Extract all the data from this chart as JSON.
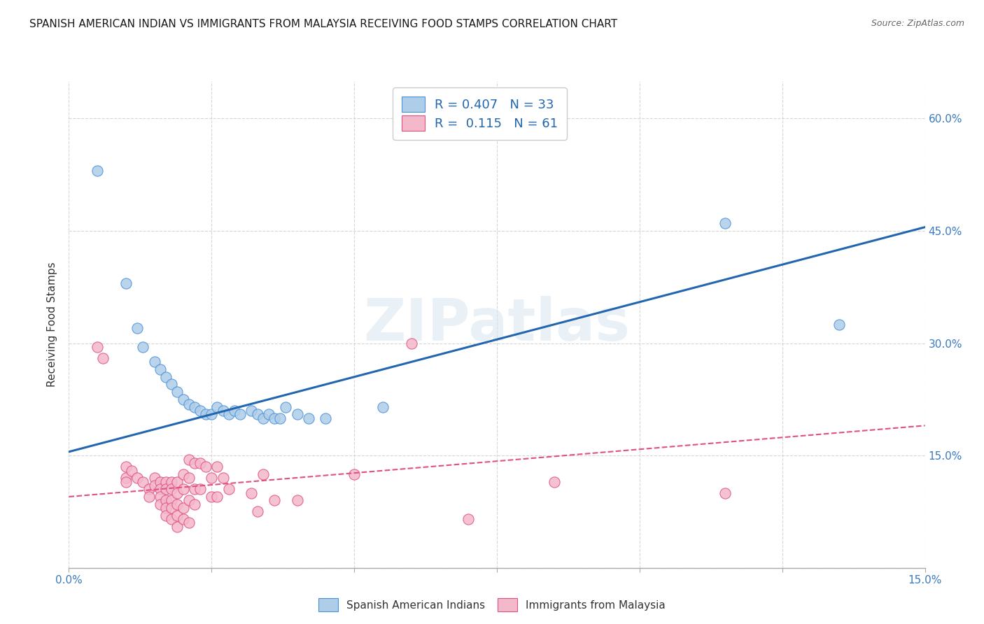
{
  "title": "SPANISH AMERICAN INDIAN VS IMMIGRANTS FROM MALAYSIA RECEIVING FOOD STAMPS CORRELATION CHART",
  "source": "Source: ZipAtlas.com",
  "ylabel": "Receiving Food Stamps",
  "xlim": [
    0.0,
    0.15
  ],
  "ylim": [
    0.0,
    0.65
  ],
  "xticks": [
    0.0,
    0.025,
    0.05,
    0.075,
    0.1,
    0.125,
    0.15
  ],
  "yticks": [
    0.0,
    0.15,
    0.3,
    0.45,
    0.6
  ],
  "ytick_labels": [
    "",
    "15.0%",
    "30.0%",
    "45.0%",
    "60.0%"
  ],
  "blue_scatter": [
    [
      0.005,
      0.53
    ],
    [
      0.01,
      0.38
    ],
    [
      0.012,
      0.32
    ],
    [
      0.013,
      0.295
    ],
    [
      0.015,
      0.275
    ],
    [
      0.016,
      0.265
    ],
    [
      0.017,
      0.255
    ],
    [
      0.018,
      0.245
    ],
    [
      0.019,
      0.235
    ],
    [
      0.02,
      0.225
    ],
    [
      0.021,
      0.218
    ],
    [
      0.022,
      0.215
    ],
    [
      0.023,
      0.21
    ],
    [
      0.024,
      0.205
    ],
    [
      0.025,
      0.205
    ],
    [
      0.026,
      0.215
    ],
    [
      0.027,
      0.21
    ],
    [
      0.028,
      0.205
    ],
    [
      0.029,
      0.21
    ],
    [
      0.03,
      0.205
    ],
    [
      0.032,
      0.21
    ],
    [
      0.033,
      0.205
    ],
    [
      0.034,
      0.2
    ],
    [
      0.035,
      0.205
    ],
    [
      0.036,
      0.2
    ],
    [
      0.037,
      0.2
    ],
    [
      0.038,
      0.215
    ],
    [
      0.04,
      0.205
    ],
    [
      0.042,
      0.2
    ],
    [
      0.045,
      0.2
    ],
    [
      0.055,
      0.215
    ],
    [
      0.115,
      0.46
    ],
    [
      0.135,
      0.325
    ]
  ],
  "pink_scatter": [
    [
      0.005,
      0.295
    ],
    [
      0.006,
      0.28
    ],
    [
      0.01,
      0.135
    ],
    [
      0.01,
      0.12
    ],
    [
      0.01,
      0.115
    ],
    [
      0.011,
      0.13
    ],
    [
      0.012,
      0.12
    ],
    [
      0.013,
      0.115
    ],
    [
      0.014,
      0.105
    ],
    [
      0.014,
      0.095
    ],
    [
      0.015,
      0.12
    ],
    [
      0.015,
      0.11
    ],
    [
      0.016,
      0.115
    ],
    [
      0.016,
      0.105
    ],
    [
      0.016,
      0.095
    ],
    [
      0.016,
      0.085
    ],
    [
      0.017,
      0.115
    ],
    [
      0.017,
      0.105
    ],
    [
      0.017,
      0.09
    ],
    [
      0.017,
      0.08
    ],
    [
      0.017,
      0.07
    ],
    [
      0.018,
      0.115
    ],
    [
      0.018,
      0.105
    ],
    [
      0.018,
      0.09
    ],
    [
      0.018,
      0.08
    ],
    [
      0.018,
      0.065
    ],
    [
      0.019,
      0.115
    ],
    [
      0.019,
      0.1
    ],
    [
      0.019,
      0.085
    ],
    [
      0.019,
      0.07
    ],
    [
      0.019,
      0.055
    ],
    [
      0.02,
      0.125
    ],
    [
      0.02,
      0.105
    ],
    [
      0.02,
      0.08
    ],
    [
      0.02,
      0.065
    ],
    [
      0.021,
      0.145
    ],
    [
      0.021,
      0.12
    ],
    [
      0.021,
      0.09
    ],
    [
      0.021,
      0.06
    ],
    [
      0.022,
      0.14
    ],
    [
      0.022,
      0.105
    ],
    [
      0.022,
      0.085
    ],
    [
      0.023,
      0.14
    ],
    [
      0.023,
      0.105
    ],
    [
      0.024,
      0.135
    ],
    [
      0.025,
      0.12
    ],
    [
      0.025,
      0.095
    ],
    [
      0.026,
      0.135
    ],
    [
      0.026,
      0.095
    ],
    [
      0.027,
      0.12
    ],
    [
      0.028,
      0.105
    ],
    [
      0.032,
      0.1
    ],
    [
      0.033,
      0.075
    ],
    [
      0.034,
      0.125
    ],
    [
      0.036,
      0.09
    ],
    [
      0.04,
      0.09
    ],
    [
      0.05,
      0.125
    ],
    [
      0.06,
      0.3
    ],
    [
      0.07,
      0.065
    ],
    [
      0.085,
      0.115
    ],
    [
      0.115,
      0.1
    ]
  ],
  "blue_line_x": [
    0.0,
    0.15
  ],
  "blue_line_y": [
    0.155,
    0.455
  ],
  "pink_line_x": [
    0.0,
    0.15
  ],
  "pink_line_y": [
    0.095,
    0.19
  ],
  "blue_color": "#aecde8",
  "blue_edge_color": "#4a90d9",
  "pink_color": "#f4b8cb",
  "pink_edge_color": "#e05080",
  "blue_line_color": "#2366b0",
  "pink_line_color": "#e05080",
  "legend_r1": "R = 0.407   N = 33",
  "legend_r2": "R =  0.115   N = 61",
  "legend_label1": "Spanish American Indians",
  "legend_label2": "Immigrants from Malaysia",
  "watermark": "ZIPatlas",
  "background_color": "#ffffff",
  "grid_color": "#cccccc"
}
